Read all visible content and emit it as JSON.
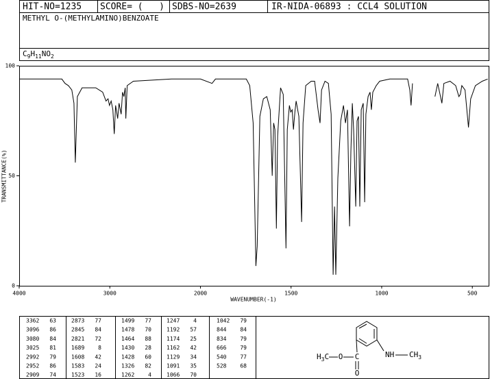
{
  "header": {
    "hit_no": "HIT-NO=1235",
    "score": "SCORE= (   )",
    "sdbs_no": "SDBS-NO=2639",
    "method": "IR-NIDA-06893 : CCL4 SOLUTION",
    "compound": "METHYL O-(METHYLAMINO)BENZOATE",
    "formula": "C9H11NO2"
  },
  "chart_data": {
    "type": "line",
    "x_label": "WAVENUMBER(-1)",
    "y_label": "TRANSMITTANCE(%)",
    "color": "#000000",
    "x": [
      4000,
      3530,
      3494,
      3457,
      3419,
      3396,
      3381,
      3358,
      3306,
      3155,
      3079,
      3042,
      3019,
      3004,
      2985,
      2966,
      2951,
      2936,
      2913,
      2898,
      2875,
      2860,
      2845,
      2830,
      2823,
      2808,
      2740,
      2320,
      2000,
      1936,
      1917,
      1747,
      1728,
      1709,
      1694,
      1687,
      1672,
      1653,
      1634,
      1615,
      1604,
      1596,
      1589,
      1581,
      1574,
      1558,
      1543,
      1528,
      1521,
      1509,
      1502,
      1494,
      1487,
      1479,
      1472,
      1457,
      1442,
      1434,
      1419,
      1389,
      1370,
      1351,
      1340,
      1332,
      1313,
      1294,
      1279,
      1268,
      1260,
      1253,
      1242,
      1226,
      1211,
      1200,
      1189,
      1177,
      1170,
      1162,
      1155,
      1143,
      1136,
      1128,
      1121,
      1113,
      1102,
      1094,
      1087,
      1075,
      1064,
      1057,
      1049,
      1030,
      1011,
      955,
      879,
      857,
      845,
      838,
      830,
      780,
      706,
      691,
      668,
      657,
      623,
      592,
      574,
      566,
      558,
      540,
      528,
      521,
      509,
      483,
      445,
      415
    ],
    "values": [
      94,
      94,
      92,
      91,
      89,
      83,
      56,
      86,
      90,
      90,
      88,
      84,
      85,
      82,
      84,
      80,
      69,
      82,
      76,
      83,
      78,
      88,
      86,
      90,
      76,
      91,
      93,
      94,
      94,
      92,
      94,
      94,
      91,
      74,
      9,
      18,
      77,
      85,
      86,
      80,
      50,
      74,
      71,
      26,
      68,
      90,
      87,
      17,
      71,
      82,
      79,
      80,
      71,
      79,
      84,
      77,
      29,
      74,
      91,
      93,
      93,
      80,
      74,
      89,
      93,
      92,
      78,
      5,
      36,
      5,
      49,
      75,
      82,
      74,
      80,
      27,
      61,
      83,
      71,
      36,
      75,
      77,
      36,
      80,
      83,
      38,
      78,
      86,
      88,
      80,
      88,
      91,
      93,
      94,
      94,
      94,
      89,
      82,
      92,
      null,
      86,
      92,
      83,
      92,
      93,
      91,
      86,
      87,
      91,
      89,
      78,
      72,
      85,
      91,
      93,
      94
    ],
    "xlim": [
      4000,
      410
    ],
    "x_scale_break": 2000,
    "xticks": [
      4000,
      3000,
      2000,
      1500,
      1000,
      500
    ],
    "ylim": [
      0,
      100
    ],
    "yticks": [
      0,
      50,
      100
    ]
  },
  "peak_table": {
    "columns": [
      [
        [
          3362,
          63
        ],
        [
          3096,
          86
        ],
        [
          3080,
          84
        ],
        [
          3025,
          81
        ],
        [
          2992,
          79
        ],
        [
          2952,
          86
        ],
        [
          2909,
          74
        ]
      ],
      [
        [
          2873,
          77
        ],
        [
          2845,
          84
        ],
        [
          2821,
          72
        ],
        [
          1689,
          8
        ],
        [
          1608,
          42
        ],
        [
          1583,
          24
        ],
        [
          1523,
          16
        ]
      ],
      [
        [
          1499,
          77
        ],
        [
          1478,
          70
        ],
        [
          1464,
          88
        ],
        [
          1430,
          28
        ],
        [
          1428,
          60
        ],
        [
          1326,
          82
        ],
        [
          1262,
          4
        ]
      ],
      [
        [
          1247,
          4
        ],
        [
          1192,
          57
        ],
        [
          1174,
          25
        ],
        [
          1162,
          42
        ],
        [
          1129,
          34
        ],
        [
          1091,
          35
        ],
        [
          1066,
          70
        ]
      ],
      [
        [
          1042,
          79
        ],
        [
          844,
          84
        ],
        [
          834,
          79
        ],
        [
          666,
          79
        ],
        [
          540,
          77
        ],
        [
          528,
          68
        ]
      ]
    ]
  },
  "structure": {
    "methyl_left": "H3C",
    "ester_o": "O",
    "carbonyl_c": "C",
    "carbonyl_o": "O",
    "amine": "NH",
    "methyl_right": "CH3"
  }
}
